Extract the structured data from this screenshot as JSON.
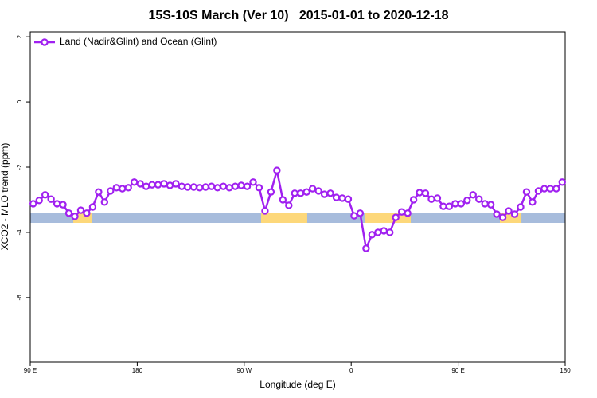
{
  "chart_data": {
    "type": "line",
    "title": "15S-10S March (Ver 10)   2015-01-01 to 2020-12-18",
    "x_label": "Longitude (deg E)",
    "y_label": "XCO2 - MLO trend (ppm)",
    "xlim": [
      90,
      540
    ],
    "ylim": [
      -7.98,
      2.15
    ],
    "xticks": [
      {
        "value": 90,
        "label": "90 E"
      },
      180,
      {
        "value": 270,
        "label": "90 W"
      },
      {
        "value": 360,
        "label": "0"
      },
      {
        "value": 450,
        "label": "90 E"
      },
      {
        "value": 540,
        "label": "180"
      }
    ],
    "yticks": [
      2,
      0,
      -2,
      -4,
      -6
    ],
    "legend_position": "top-left",
    "land_color": "#fdd87a",
    "ocean_color": "#a7bcdc",
    "land_segments": [
      [
        126.2,
        142.2
      ],
      [
        284.2,
        323.0
      ],
      [
        371.3,
        410.1
      ],
      [
        485.1,
        503.2
      ]
    ],
    "x": [
      92.5,
      97.5,
      102.5,
      107.5,
      112.5,
      117.5,
      122.5,
      127.5,
      132.5,
      137.5,
      142.5,
      147.5,
      152.5,
      157.5,
      162.5,
      167.5,
      172.5,
      177.5,
      182.5,
      187.5,
      192.5,
      197.5,
      202.5,
      207.5,
      212.5,
      217.5,
      222.5,
      227.5,
      232.5,
      237.5,
      242.5,
      247.5,
      252.5,
      257.5,
      262.5,
      267.5,
      272.5,
      277.5,
      282.5,
      287.5,
      292.5,
      297.5,
      302.5,
      307.5,
      312.5,
      317.5,
      322.5,
      327.5,
      332.5,
      337.5,
      342.5,
      347.5,
      352.5,
      357.5,
      362.5,
      367.5,
      372.5,
      377.5,
      382.5,
      387.5,
      392.5,
      397.5,
      402.5,
      407.5,
      412.5,
      417.5,
      422.5,
      427.5,
      432.5,
      437.5,
      442.5,
      447.5,
      452.5,
      457.5,
      462.5,
      467.5,
      472.5,
      477.5,
      482.5,
      487.5,
      492.5,
      497.5,
      502.5,
      507.5,
      512.5,
      517.5,
      522.5,
      527.5,
      532.5,
      537.5
    ],
    "series": [
      {
        "name": "Land (Nadir&Glint) and Ocean (Glint)",
        "color": "#a020f0",
        "values": [
          -3.12,
          -3.02,
          -2.85,
          -2.98,
          -3.12,
          -3.15,
          -3.41,
          -3.51,
          -3.32,
          -3.41,
          -3.22,
          -2.76,
          -3.07,
          -2.73,
          -2.63,
          -2.66,
          -2.63,
          -2.46,
          -2.51,
          -2.59,
          -2.54,
          -2.54,
          -2.51,
          -2.56,
          -2.51,
          -2.59,
          -2.61,
          -2.61,
          -2.63,
          -2.61,
          -2.59,
          -2.63,
          -2.59,
          -2.63,
          -2.59,
          -2.56,
          -2.59,
          -2.46,
          -2.63,
          -3.34,
          -2.76,
          -2.1,
          -3.0,
          -3.17,
          -2.8,
          -2.8,
          -2.76,
          -2.66,
          -2.73,
          -2.83,
          -2.8,
          -2.93,
          -2.95,
          -2.98,
          -3.49,
          -3.41,
          -4.49,
          -4.07,
          -4.0,
          -3.95,
          -4.0,
          -3.54,
          -3.37,
          -3.41,
          -3.0,
          -2.78,
          -2.8,
          -2.98,
          -2.95,
          -3.2,
          -3.2,
          -3.12,
          -3.12,
          -3.02,
          -2.85,
          -2.98,
          -3.12,
          -3.15,
          -3.44,
          -3.54,
          -3.34,
          -3.44,
          -3.22,
          -2.76,
          -3.07,
          -2.73,
          -2.66,
          -2.66,
          -2.66,
          -2.46
        ]
      }
    ]
  }
}
